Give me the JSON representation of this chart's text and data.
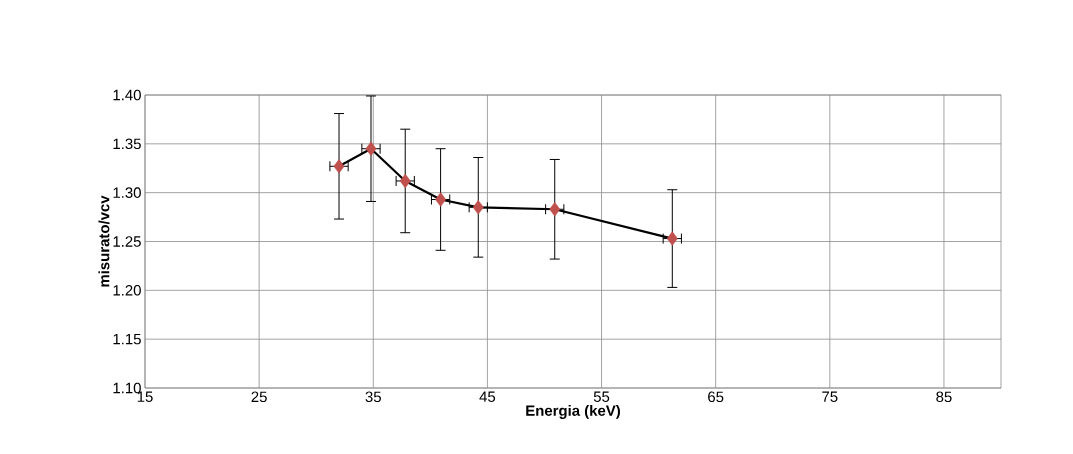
{
  "chart_data": {
    "type": "line",
    "xlabel": "Energia (keV)",
    "ylabel": "misurato/vcv",
    "xlim": [
      15,
      90
    ],
    "xticks": [
      15,
      25,
      35,
      45,
      55,
      65,
      75,
      85
    ],
    "ylim": [
      1.1,
      1.4
    ],
    "yticks": [
      {
        "value": 1.1,
        "label": "1.10"
      },
      {
        "value": 1.15,
        "label": "1.15"
      },
      {
        "value": 1.2,
        "label": "1.20"
      },
      {
        "value": 1.25,
        "label": "1.25"
      },
      {
        "value": 1.3,
        "label": "1.30"
      },
      {
        "value": 1.35,
        "label": "1.35"
      },
      {
        "value": 1.4,
        "label": "1.40"
      }
    ],
    "grid": true,
    "series": [
      {
        "color": "#000000",
        "marker": "none",
        "x": [
          32,
          34.8,
          37.8,
          40.9,
          44.2,
          50.9,
          61.2
        ],
        "values": [
          1.327,
          1.345,
          1.312,
          1.293,
          1.285,
          1.283,
          1.253
        ]
      },
      {
        "type": "scatter",
        "color": "#c0504d",
        "marker": "diamond",
        "x": [
          32,
          34.8,
          37.8,
          40.9,
          44.2,
          50.9,
          61.2
        ],
        "values": [
          1.327,
          1.345,
          1.312,
          1.293,
          1.285,
          1.283,
          1.253
        ],
        "errors": [
          0.054,
          0.054,
          0.053,
          0.052,
          0.051,
          0.051,
          0.05
        ],
        "xerrors": [
          0.8,
          0.8,
          0.8,
          0.8,
          0.8,
          0.8,
          0.8
        ]
      }
    ]
  }
}
